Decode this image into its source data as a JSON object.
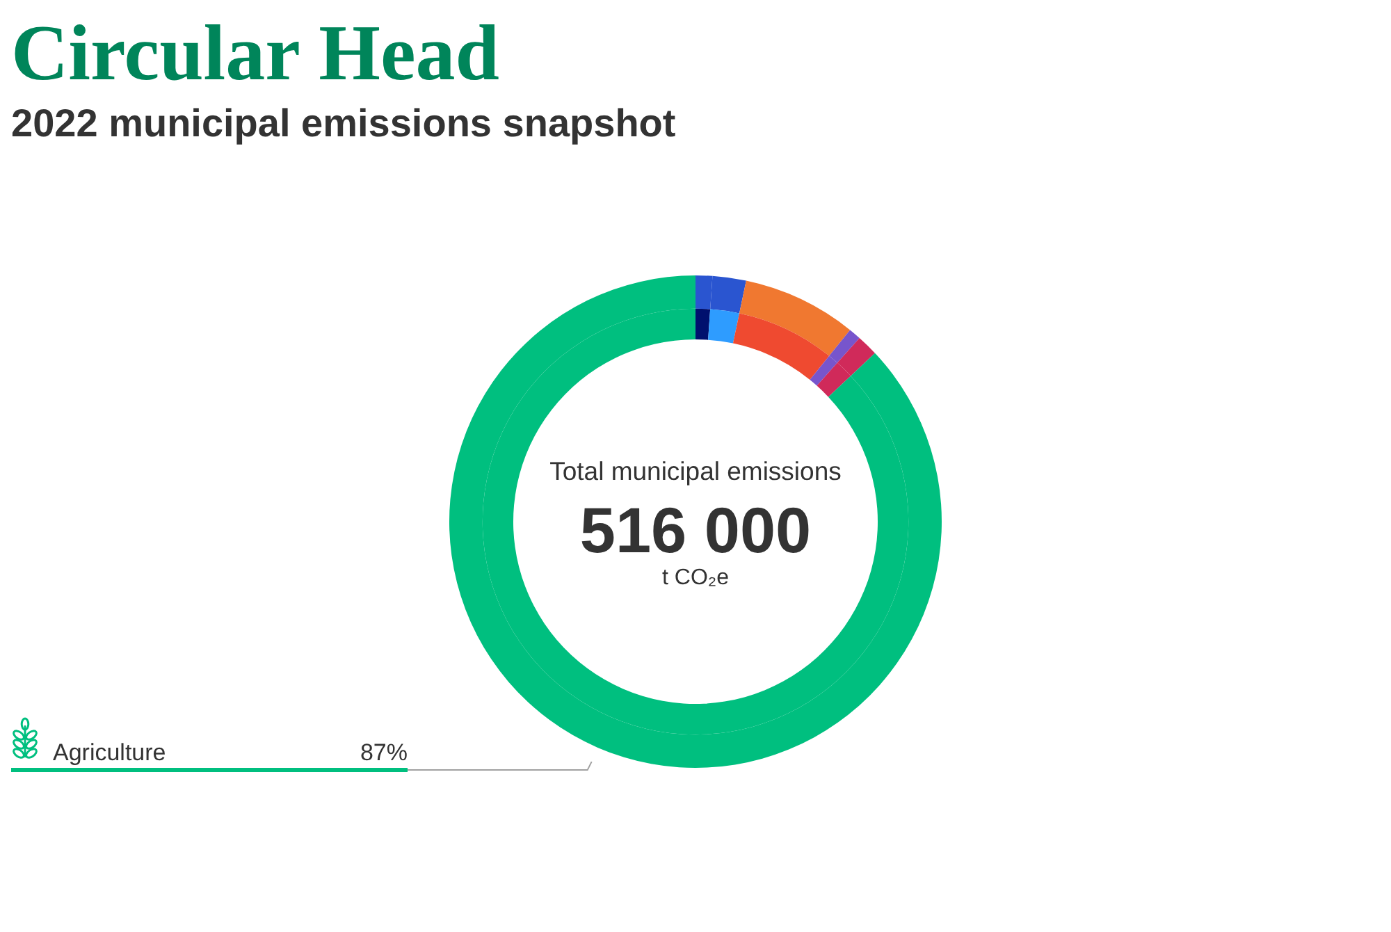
{
  "chart_data": {
    "type": "donut",
    "title": "Circular Head",
    "subtitle": "2022 municipal emissions snapshot",
    "categories": [
      null,
      null,
      null,
      null,
      null,
      "Agriculture"
    ],
    "series": [
      {
        "values": [
          1.1,
          2.2,
          7.5,
          0.8,
          1.4,
          87
        ],
        "colors": [
          "#2a55d0",
          "#2a55d0",
          "#f07830",
          "#7755cc",
          "#d02a5a",
          "#00bf7f"
        ],
        "value_labels": [
          null,
          null,
          null,
          null,
          null,
          "87%"
        ]
      },
      {
        "values": [
          1.1,
          2.2,
          7.5,
          0.8,
          1.4,
          87
        ],
        "colors": [
          "#00106e",
          "#2e9cff",
          "#ef4a30",
          "#7755cc",
          "#d02a5a",
          "#00bf7f"
        ]
      }
    ],
    "annotations": [
      "Total municipal emissions",
      "516 000",
      "t CO₂e"
    ]
  }
}
